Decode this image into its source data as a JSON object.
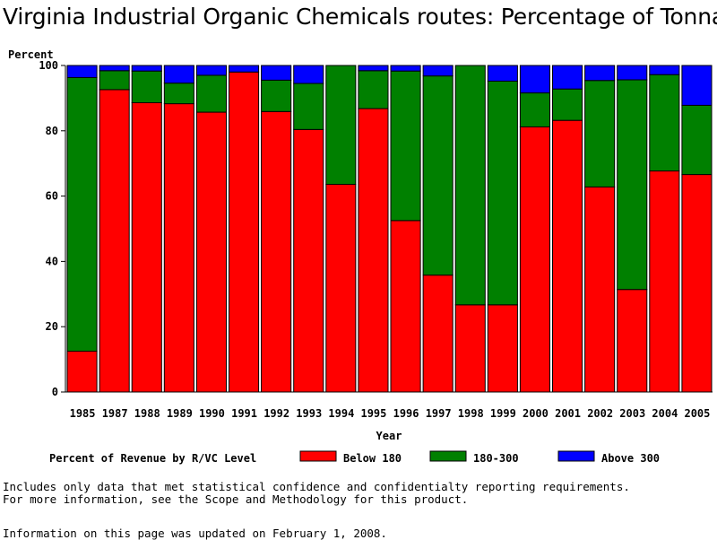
{
  "chart_data": {
    "type": "bar",
    "stacked": true,
    "title": "Virginia Industrial Organic Chemicals routes: Percentage of Tonnage",
    "ylabel": "Percent",
    "xlabel": "Year",
    "ylim": [
      0,
      100
    ],
    "yticks": [
      "0",
      "20",
      "40",
      "60",
      "80",
      "100"
    ],
    "categories": [
      "1985",
      "1987",
      "1988",
      "1989",
      "1990",
      "1991",
      "1992",
      "1993",
      "1994",
      "1995",
      "1996",
      "1997",
      "1998",
      "1999",
      "2000",
      "2001",
      "2002",
      "2003",
      "2004",
      "2005"
    ],
    "series": [
      {
        "name": "Below 180",
        "color": "#ff0000",
        "values": [
          12.5,
          92.6,
          88.6,
          88.3,
          85.7,
          98.0,
          85.9,
          80.4,
          63.6,
          86.8,
          52.5,
          35.8,
          26.7,
          26.7,
          81.2,
          83.2,
          62.8,
          31.4,
          67.7,
          66.6
        ]
      },
      {
        "name": "180-300",
        "color": "#008000",
        "values": [
          83.8,
          5.8,
          9.7,
          6.3,
          11.3,
          0.0,
          9.6,
          14.1,
          36.4,
          11.6,
          45.8,
          61.0,
          73.3,
          68.5,
          10.4,
          9.6,
          32.6,
          64.2,
          29.5,
          21.2
        ]
      },
      {
        "name": "Above 300",
        "color": "#0000ff",
        "values": [
          3.7,
          1.6,
          1.7,
          5.4,
          3.0,
          2.0,
          4.5,
          5.5,
          0.0,
          1.6,
          1.7,
          3.2,
          0.0,
          4.8,
          8.4,
          7.2,
          4.6,
          4.4,
          2.8,
          12.2
        ]
      }
    ],
    "legend_title": "Percent of Revenue by R/VC Level",
    "legend_position": "bottom",
    "grid": false
  },
  "notes": {
    "line1": "Includes only data that met statistical confidence and confidentialty reporting requirements.",
    "line2": "For more information, see the Scope and Methodology for this product.",
    "updated": "Information on this page was updated on February 1, 2008."
  }
}
